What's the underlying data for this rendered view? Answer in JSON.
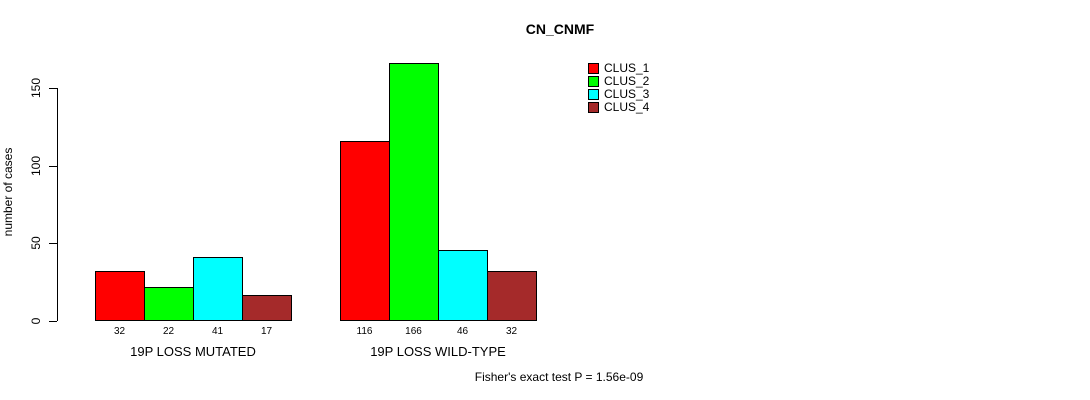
{
  "chart_data": {
    "type": "bar",
    "title": "CN_CNMF",
    "ylabel": "number of cases",
    "xlabel": "",
    "ylim": [
      0,
      166
    ],
    "yticks": [
      0,
      50,
      100,
      150
    ],
    "grid": false,
    "legend_position": "top-right",
    "show_bar_value_labels": true,
    "categories": [
      "19P LOSS MUTATED",
      "19P LOSS WILD-TYPE"
    ],
    "series": [
      {
        "name": "CLUS_1",
        "color": "#ff0000",
        "values": [
          32,
          116
        ]
      },
      {
        "name": "CLUS_2",
        "color": "#00ff00",
        "values": [
          22,
          166
        ]
      },
      {
        "name": "CLUS_3",
        "color": "#00ffff",
        "values": [
          41,
          46
        ]
      },
      {
        "name": "CLUS_4",
        "color": "#a52a2a",
        "values": [
          17,
          32
        ]
      }
    ],
    "footnote": "Fisher's exact test P = 1.56e-09"
  },
  "colors": {
    "background": "#ffffff",
    "text": "#000000",
    "bar_border": "#000000",
    "axis": "#000000"
  }
}
